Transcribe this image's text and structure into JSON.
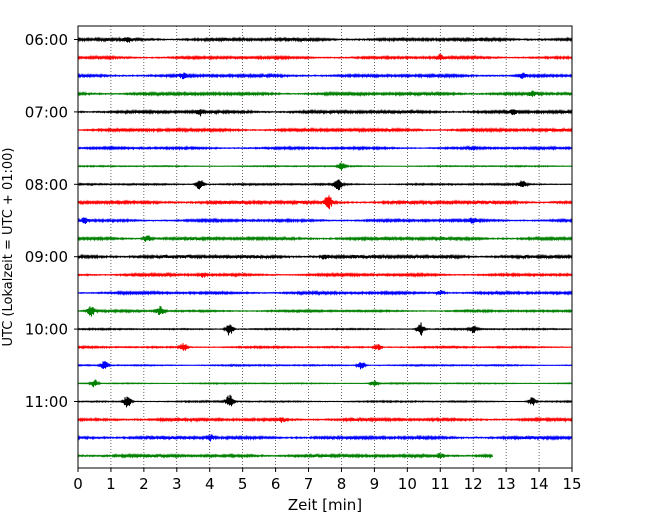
{
  "chart_data": {
    "type": "line",
    "title": "",
    "xlabel": "Zeit  [min]",
    "ylabel": "UTC (Lokalzeit = UTC + 01:00)",
    "xlim": [
      0,
      15
    ],
    "x_ticks": [
      0,
      1,
      2,
      3,
      4,
      5,
      6,
      7,
      8,
      9,
      10,
      11,
      12,
      13,
      14,
      15
    ],
    "y_tick_labels": [
      "06:00",
      "07:00",
      "08:00",
      "09:00",
      "10:00",
      "11:00"
    ],
    "vertical_grid": true,
    "trace_minutes_per_row": 15,
    "start_time": "06:00",
    "trace_colors": [
      "#000000",
      "#ff0000",
      "#0000ff",
      "#008000"
    ],
    "rows": [
      {
        "time": "06:00",
        "color": "#000000",
        "amplitude": 0.55,
        "end_min": 15,
        "events": [
          {
            "at": 1.5,
            "amp": 1.0
          }
        ]
      },
      {
        "time": "06:15",
        "color": "#ff0000",
        "amplitude": 0.45,
        "end_min": 15,
        "events": [
          {
            "at": 11.0,
            "amp": 1.1
          }
        ]
      },
      {
        "time": "06:30",
        "color": "#0000ff",
        "amplitude": 0.5,
        "end_min": 15,
        "events": [
          {
            "at": 3.2,
            "amp": 1.3
          },
          {
            "at": 13.5,
            "amp": 1.0
          }
        ]
      },
      {
        "time": "06:45",
        "color": "#008000",
        "amplitude": 0.55,
        "end_min": 15,
        "events": [
          {
            "at": 13.8,
            "amp": 1.0
          }
        ]
      },
      {
        "time": "07:00",
        "color": "#000000",
        "amplitude": 0.55,
        "end_min": 15,
        "events": [
          {
            "at": 3.7,
            "amp": 1.4
          },
          {
            "at": 13.2,
            "amp": 1.0
          }
        ]
      },
      {
        "time": "07:15",
        "color": "#ff0000",
        "amplitude": 0.55,
        "end_min": 15,
        "events": []
      },
      {
        "time": "07:30",
        "color": "#0000ff",
        "amplitude": 0.4,
        "end_min": 15,
        "events": [
          {
            "at": 12.0,
            "amp": 0.8
          }
        ]
      },
      {
        "time": "07:45",
        "color": "#008000",
        "amplitude": 0.2,
        "end_min": 15,
        "events": [
          {
            "at": 8.0,
            "amp": 1.5
          }
        ]
      },
      {
        "time": "08:00",
        "color": "#000000",
        "amplitude": 0.3,
        "end_min": 15,
        "events": [
          {
            "at": 3.7,
            "amp": 2.5
          },
          {
            "at": 7.9,
            "amp": 2.5
          },
          {
            "at": 13.5,
            "amp": 1.8
          }
        ]
      },
      {
        "time": "08:15",
        "color": "#ff0000",
        "amplitude": 0.6,
        "end_min": 15,
        "events": [
          {
            "at": 7.6,
            "amp": 3.0
          }
        ]
      },
      {
        "time": "08:30",
        "color": "#0000ff",
        "amplitude": 0.45,
        "end_min": 15,
        "events": [
          {
            "at": 0.2,
            "amp": 1.2
          },
          {
            "at": 12.0,
            "amp": 1.2
          }
        ]
      },
      {
        "time": "08:45",
        "color": "#008000",
        "amplitude": 0.55,
        "end_min": 15,
        "events": [
          {
            "at": 2.1,
            "amp": 1.5
          }
        ]
      },
      {
        "time": "09:00",
        "color": "#000000",
        "amplitude": 0.65,
        "end_min": 15,
        "events": [
          {
            "at": 7.5,
            "amp": 1.0
          }
        ]
      },
      {
        "time": "09:15",
        "color": "#ff0000",
        "amplitude": 0.45,
        "end_min": 15,
        "events": [
          {
            "at": 3.8,
            "amp": 1.0
          }
        ]
      },
      {
        "time": "09:30",
        "color": "#0000ff",
        "amplitude": 0.45,
        "end_min": 15,
        "events": [
          {
            "at": 11.0,
            "amp": 1.0
          }
        ]
      },
      {
        "time": "09:45",
        "color": "#008000",
        "amplitude": 0.35,
        "end_min": 15,
        "events": [
          {
            "at": 0.4,
            "amp": 2.2
          },
          {
            "at": 2.5,
            "amp": 2.0
          }
        ]
      },
      {
        "time": "10:00",
        "color": "#000000",
        "amplitude": 0.25,
        "end_min": 15,
        "events": [
          {
            "at": 4.6,
            "amp": 2.8
          },
          {
            "at": 10.4,
            "amp": 2.8
          },
          {
            "at": 12.0,
            "amp": 1.5
          }
        ]
      },
      {
        "time": "10:15",
        "color": "#ff0000",
        "amplitude": 0.3,
        "end_min": 15,
        "events": [
          {
            "at": 3.2,
            "amp": 1.8
          },
          {
            "at": 9.1,
            "amp": 1.4
          }
        ]
      },
      {
        "time": "10:30",
        "color": "#0000ff",
        "amplitude": 0.25,
        "end_min": 15,
        "events": [
          {
            "at": 0.8,
            "amp": 1.8
          },
          {
            "at": 8.6,
            "amp": 1.8
          }
        ]
      },
      {
        "time": "10:45",
        "color": "#008000",
        "amplitude": 0.2,
        "end_min": 15,
        "events": [
          {
            "at": 0.5,
            "amp": 1.6
          },
          {
            "at": 9.0,
            "amp": 1.2
          }
        ]
      },
      {
        "time": "11:00",
        "color": "#000000",
        "amplitude": 0.25,
        "end_min": 15,
        "events": [
          {
            "at": 1.5,
            "amp": 2.6
          },
          {
            "at": 4.6,
            "amp": 2.6
          },
          {
            "at": 13.8,
            "amp": 1.8
          }
        ]
      },
      {
        "time": "11:15",
        "color": "#ff0000",
        "amplitude": 0.5,
        "end_min": 15,
        "events": [
          {
            "at": 6.2,
            "amp": 1.0
          }
        ]
      },
      {
        "time": "11:30",
        "color": "#0000ff",
        "amplitude": 0.55,
        "end_min": 15,
        "events": [
          {
            "at": 4.0,
            "amp": 1.5
          }
        ]
      },
      {
        "time": "11:45",
        "color": "#008000",
        "amplitude": 0.55,
        "end_min": 12.6,
        "events": [
          {
            "at": 11.0,
            "amp": 1.1
          }
        ]
      }
    ]
  }
}
